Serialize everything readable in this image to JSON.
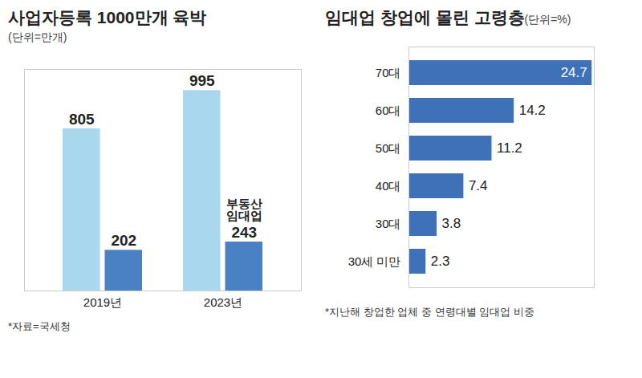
{
  "chart_data": [
    {
      "type": "bar",
      "title": "사업자등록 1000만개 육박",
      "subtitle": "(단위=만개)",
      "note": "*자료=국세청",
      "categories": [
        "2019년",
        "2023년"
      ],
      "series": [
        {
          "color": "#a9d7ee",
          "values": [
            805,
            995
          ]
        },
        {
          "name": "부동산 임대업",
          "color": "#4a80c4",
          "values": [
            202,
            243
          ]
        }
      ],
      "ylim": [
        0,
        1100
      ],
      "yticks": [],
      "data_labels": true,
      "tick_labels": "x"
    },
    {
      "type": "bar",
      "title": "임대업 창업에 몰린 고령층",
      "subtitle": "(단위=%)",
      "note": "*지난해 창업한 업체 중 연령대별 임대업 비중",
      "categories": [
        "70대",
        "60대",
        "50대",
        "40대",
        "30대",
        "30세 미만"
      ],
      "values": [
        24.7,
        14.2,
        11.2,
        7.4,
        3.8,
        2.3
      ],
      "color": "#3d72b8",
      "orientation": "horizontal",
      "xlim": [
        0,
        25
      ],
      "xticks": [],
      "data_labels": true,
      "tick_labels": "y"
    }
  ]
}
